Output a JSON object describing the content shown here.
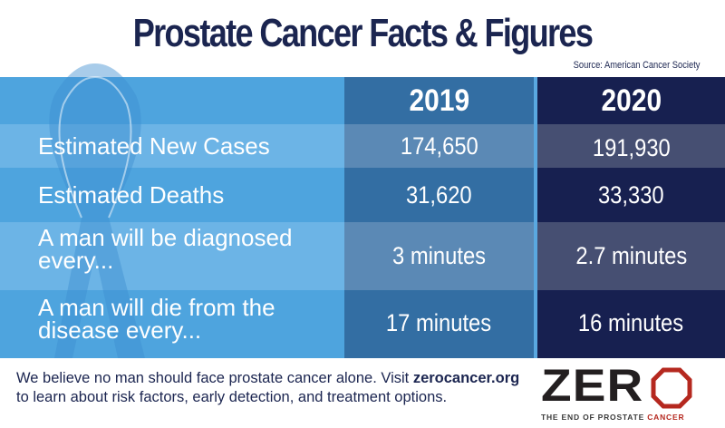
{
  "title": "Prostate Cancer Facts & Figures",
  "source": "Source: American Cancer Society",
  "columns": [
    "2019",
    "2020"
  ],
  "rows": [
    {
      "label": "Estimated New Cases",
      "v2019": "174,650",
      "v2020": "191,930"
    },
    {
      "label": "Estimated Deaths",
      "v2019": "31,620",
      "v2020": "33,330"
    },
    {
      "label": "A man will be diagnosed every...",
      "v2019": "3 minutes",
      "v2020": "2.7 minutes"
    },
    {
      "label": "A man will die from the disease every...",
      "v2019": "17 minutes",
      "v2020": "16 minutes"
    }
  ],
  "footer": {
    "text": "We believe no man should face prostate cancer alone. Visit",
    "link": "zerocancer.org",
    "text2": "to learn about risk factors, early detection, and treatment options."
  },
  "logo": {
    "word": "ZERO",
    "tagline_a": "THE END OF PROSTATE",
    "tagline_b": "CANCER"
  },
  "colors": {
    "navy": "#1b2550",
    "light_blue": "#4ea4de",
    "col2019": "#336ea3",
    "col2020": "#172050",
    "logo_red": "#b5281f"
  }
}
